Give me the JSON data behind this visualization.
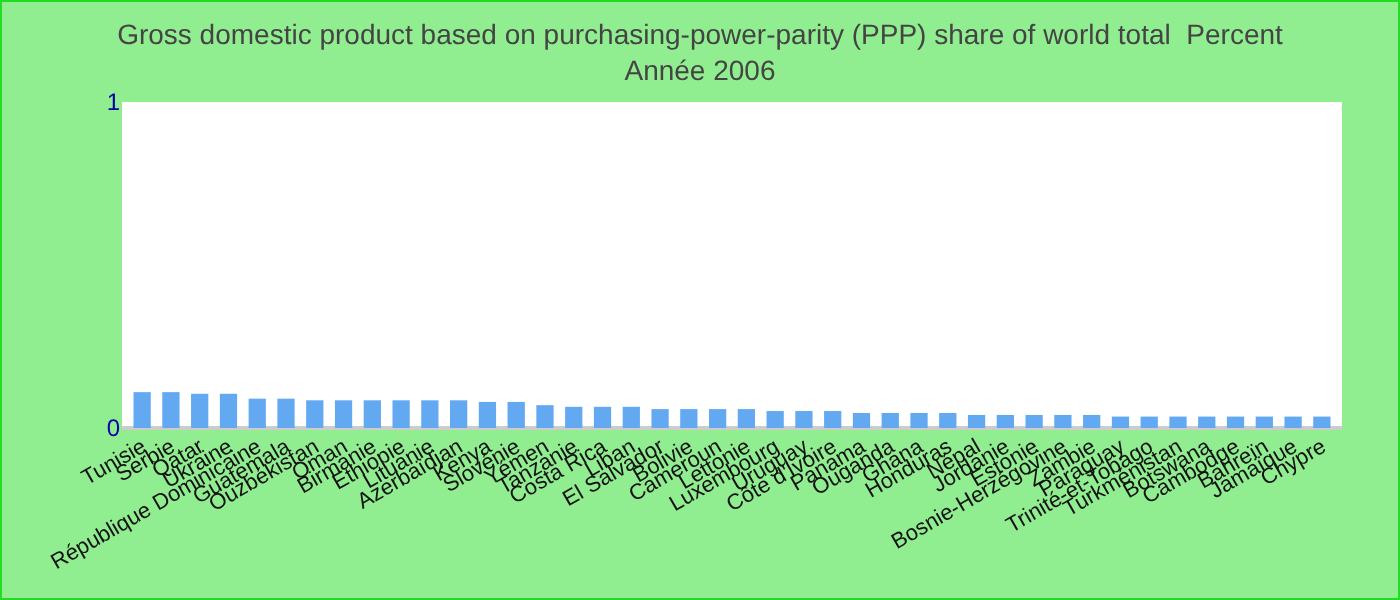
{
  "chart_data": {
    "type": "bar",
    "title": "Gross domestic product based on purchasing-power-parity (PPP) share of world total  Percent",
    "subtitle": "Année 2006",
    "categories": [
      "Tunisie",
      "Serbie",
      "Qatar",
      "Ukraine",
      "République Dominicaine",
      "Guatemala",
      "Ouzbékistan",
      "Oman",
      "Birmanie",
      "Ethiopie",
      "Lituanie",
      "Azerbaïdjan",
      "Kenya",
      "Slovénie",
      "Yémen",
      "Tanzanie",
      "Costa Rica",
      "Liban",
      "El Salvador",
      "Bolivie",
      "Cameroun",
      "Lettonie",
      "Luxembourg",
      "Uruguay",
      "Côte d'Ivoire",
      "Panama",
      "Ouganda",
      "Ghana",
      "Honduras",
      "Népal",
      "Jordanie",
      "Estonie",
      "Bosnie-Herzégovine",
      "Zambie",
      "Paraguay",
      "Trinité-et-Tobago",
      "Turkménistan",
      "Botswana",
      "Cambodge",
      "Bahreïn",
      "Jamaïque",
      "Chypre"
    ],
    "values": [
      0.11,
      0.11,
      0.105,
      0.105,
      0.09,
      0.09,
      0.085,
      0.085,
      0.085,
      0.085,
      0.085,
      0.085,
      0.08,
      0.08,
      0.07,
      0.065,
      0.065,
      0.065,
      0.058,
      0.058,
      0.058,
      0.058,
      0.052,
      0.052,
      0.052,
      0.046,
      0.046,
      0.046,
      0.046,
      0.04,
      0.04,
      0.04,
      0.04,
      0.04,
      0.035,
      0.035,
      0.035,
      0.035,
      0.035,
      0.035,
      0.035,
      0.035
    ],
    "color": "#62a9f2",
    "ylim": [
      0,
      1
    ],
    "yticks": [
      0,
      1
    ],
    "grid": false
  }
}
